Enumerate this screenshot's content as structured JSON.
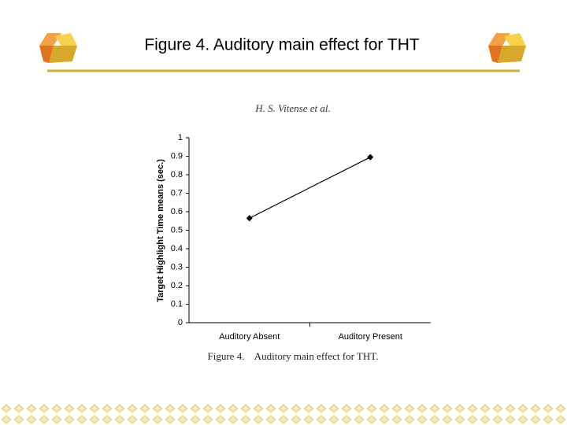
{
  "chart_data": {
    "type": "line",
    "title": "Figure 4. Auditory main effect for THT",
    "subtitle": "H. S. Vitense et al.",
    "caption": "Figure 4.    Auditory main effect for THT.",
    "y_label": "Target Highlight Time means (sec.)",
    "categories": [
      "Auditory Absent",
      "Auditory Present"
    ],
    "values": [
      0.565,
      0.895
    ],
    "color": "#000000",
    "ylim": [
      0,
      1
    ],
    "yticks": [
      0,
      0.1,
      0.2,
      0.3,
      0.4,
      0.5,
      0.6,
      0.7,
      0.8,
      0.9,
      1
    ],
    "grid": false
  }
}
